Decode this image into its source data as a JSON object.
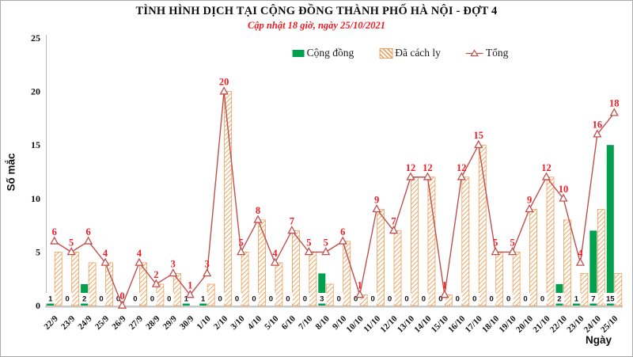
{
  "title": "TÌNH HÌNH DỊCH TẠI CỘNG ĐỒNG THÀNH PHỐ HÀ NỘI - ĐỢT 4",
  "subtitle": "Cập nhật 18 giờ, ngày 25/10/2021",
  "chart_data": {
    "type": "bar",
    "title": "TÌNH HÌNH DỊCH TẠI CỘNG ĐỒNG THÀNH PHỐ HÀ NỘI - ĐỢT 4",
    "subtitle": "Cập nhật 18 giờ, ngày 25/10/2021",
    "xlabel": "Ngày",
    "ylabel": "Số mắc",
    "ylim": [
      0,
      25
    ],
    "yticks": [
      0,
      5,
      10,
      15,
      20,
      25
    ],
    "grid": false,
    "legend_position": "top-center",
    "categories": [
      "22/9",
      "23/9",
      "24/9",
      "25/9",
      "26/9",
      "27/9",
      "28/9",
      "29/9",
      "30/9",
      "1/10",
      "2/10",
      "3/10",
      "4/10",
      "5/10",
      "6/10",
      "7/10",
      "8/10",
      "9/10",
      "10/10",
      "11/10",
      "12/10",
      "13/10",
      "14/10",
      "15/10",
      "16/10",
      "17/10",
      "18/10",
      "19/10",
      "20/10",
      "21/10",
      "22/10",
      "23/10",
      "24/10",
      "25/10"
    ],
    "series": [
      {
        "name": "Cộng đồng",
        "type": "bar",
        "color": "#00a04f",
        "show_labels": true,
        "label_color": "#111111",
        "values": [
          1,
          0,
          2,
          0,
          0,
          0,
          0,
          0,
          1,
          1,
          0,
          0,
          0,
          0,
          0,
          0,
          3,
          0,
          0,
          0,
          0,
          0,
          0,
          0,
          0,
          0,
          0,
          0,
          0,
          0,
          2,
          1,
          7,
          15
        ]
      },
      {
        "name": "Đã cách ly",
        "type": "bar",
        "style": "hatched",
        "color": "#eda05b",
        "values": [
          5,
          5,
          4,
          4,
          0,
          4,
          2,
          3,
          0,
          2,
          20,
          5,
          8,
          4,
          7,
          5,
          2,
          6,
          1,
          9,
          7,
          12,
          12,
          1,
          12,
          15,
          5,
          5,
          9,
          12,
          8,
          3,
          9,
          3
        ]
      },
      {
        "name": "Tổng",
        "type": "line",
        "color": "#c0504d",
        "marker": "triangle-open",
        "show_labels": true,
        "label_color": "#ee1c25",
        "values": [
          6,
          5,
          6,
          4,
          0,
          4,
          2,
          3,
          1,
          3,
          20,
          5,
          8,
          4,
          7,
          5,
          5,
          6,
          1,
          9,
          7,
          12,
          12,
          1,
          12,
          15,
          5,
          5,
          9,
          12,
          10,
          4,
          16,
          18
        ]
      }
    ],
    "axis_color": "#b7b7b7",
    "baseline_color": "#c9c9c9"
  }
}
